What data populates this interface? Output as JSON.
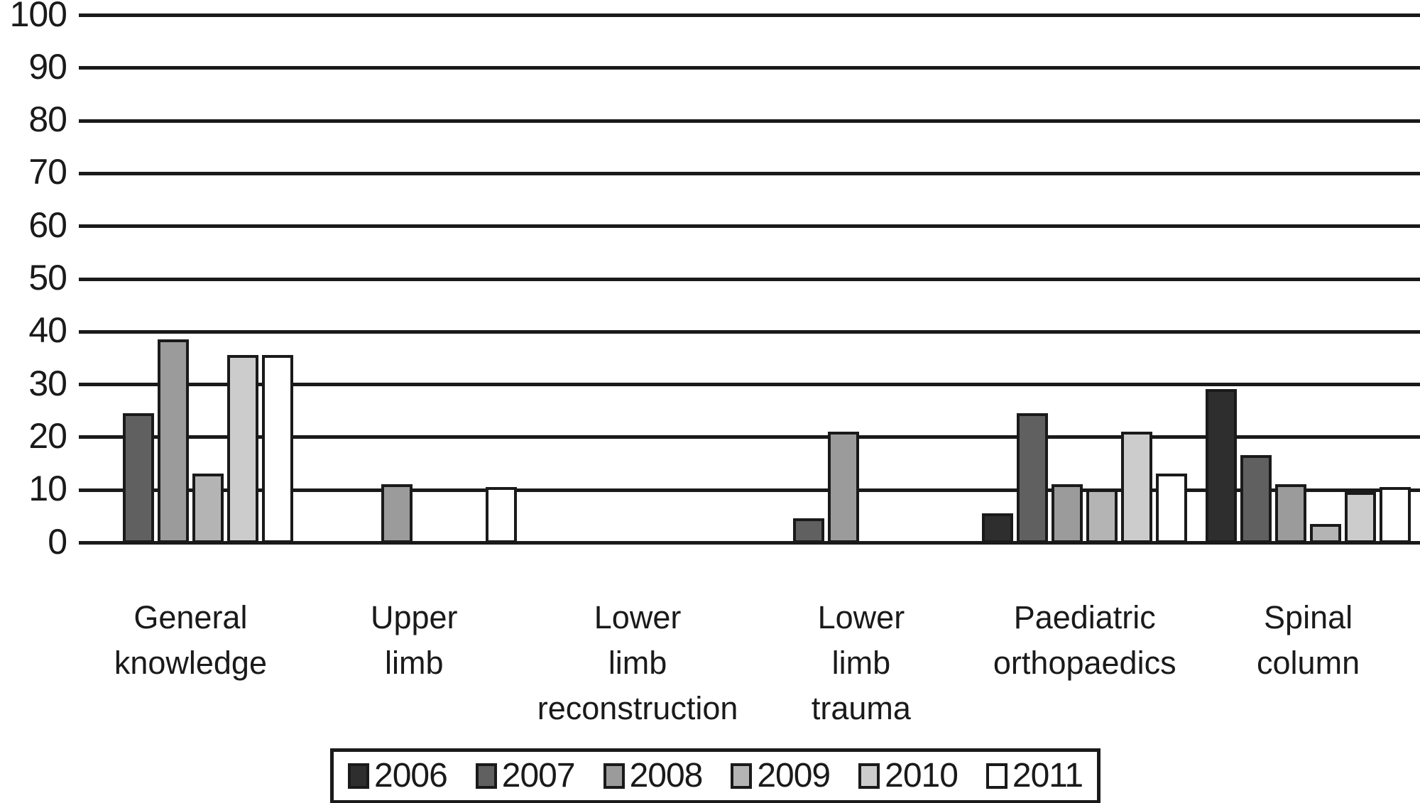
{
  "chart_data": {
    "type": "bar",
    "title": "",
    "xlabel": "",
    "ylabel": "",
    "ylim": [
      0,
      100
    ],
    "yticks": [
      0,
      10,
      20,
      30,
      40,
      50,
      60,
      70,
      80,
      90,
      100
    ],
    "grid": "horizontal",
    "gridline_color": "#1a1a1a",
    "bar_border_color": "#1a1a1a",
    "legend_position": "bottom-center",
    "categories": [
      "General knowledge",
      "Upper limb",
      "Lower limb reconstruction",
      "Lower limb trauma",
      "Paediatric orthopaedics",
      "Spinal column"
    ],
    "category_label_lines": [
      [
        "General",
        "knowledge"
      ],
      [
        "Upper",
        "limb"
      ],
      [
        "Lower",
        "limb",
        "reconstruction"
      ],
      [
        "Lower",
        "limb",
        "trauma"
      ],
      [
        "Paediatric",
        "orthopaedics"
      ],
      [
        "Spinal",
        "column"
      ]
    ],
    "series": [
      {
        "name": "2006",
        "color": "#2e2e2e",
        "values": [
          0,
          0,
          0,
          0,
          5,
          28.5
        ]
      },
      {
        "name": "2007",
        "color": "#606060",
        "values": [
          24,
          0,
          0,
          4,
          24,
          16
        ]
      },
      {
        "name": "2008",
        "color": "#9b9b9b",
        "values": [
          38,
          10.5,
          0,
          20.5,
          10.5,
          10.5
        ]
      },
      {
        "name": "2009",
        "color": "#b4b4b4",
        "values": [
          12.5,
          0,
          0,
          0,
          9.5,
          3
        ]
      },
      {
        "name": "2010",
        "color": "#cccccc",
        "values": [
          35,
          0,
          0,
          0,
          20.5,
          9
        ]
      },
      {
        "name": "2011",
        "color": "#ffffff",
        "values": [
          35,
          10,
          0,
          0,
          12.5,
          10
        ]
      }
    ]
  }
}
